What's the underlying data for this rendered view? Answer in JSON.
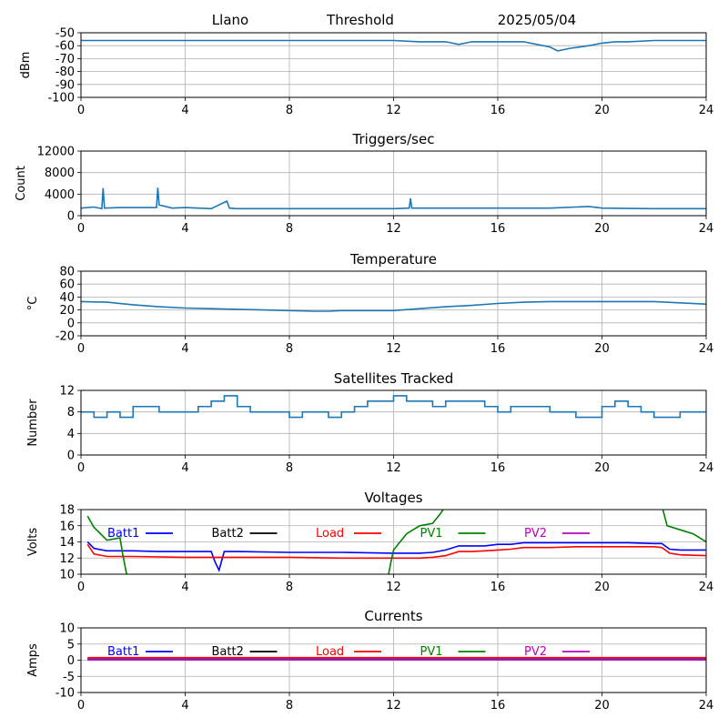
{
  "chart_data": [
    {
      "type": "line",
      "header": {
        "site": "Llano",
        "mode": "Threshold",
        "date": "2025/05/04"
      },
      "title": "",
      "ylabel": "dBm",
      "xlim": [
        0,
        24
      ],
      "ylim": [
        -100,
        -50
      ],
      "xticks": [
        0,
        4,
        8,
        12,
        16,
        20,
        24
      ],
      "yticks": [
        -100,
        -90,
        -80,
        -70,
        -60,
        -50
      ],
      "grid": true,
      "series": [
        {
          "color": "#1f77b4",
          "x": [
            0,
            1,
            2,
            3,
            4,
            5,
            6,
            7,
            8,
            9,
            10,
            11,
            12,
            13,
            14,
            14.5,
            15,
            16,
            17,
            17.5,
            18,
            18.3,
            18.8,
            19.5,
            20,
            20.5,
            21,
            22,
            23,
            24
          ],
          "y": [
            -56,
            -56,
            -56,
            -56,
            -56,
            -56,
            -56,
            -56,
            -56,
            -56,
            -56,
            -56,
            -56,
            -57,
            -57,
            -59,
            -57,
            -57,
            -57,
            -59,
            -61,
            -64,
            -62,
            -60,
            -58,
            -57,
            -57,
            -56,
            -56,
            -56
          ]
        }
      ]
    },
    {
      "type": "line",
      "title": "Triggers/sec",
      "ylabel": "Count",
      "xlim": [
        0,
        24
      ],
      "ylim": [
        0,
        12000
      ],
      "xticks": [
        0,
        4,
        8,
        12,
        16,
        20,
        24
      ],
      "yticks": [
        0,
        4000,
        8000,
        12000
      ],
      "grid": true,
      "series": [
        {
          "color": "#1f77b4",
          "x": [
            0,
            0.5,
            0.8,
            0.85,
            0.9,
            1.5,
            2.9,
            2.95,
            3.0,
            3.5,
            4,
            5,
            5.6,
            5.7,
            6,
            8,
            10,
            12,
            12.6,
            12.65,
            12.7,
            14,
            16,
            18,
            19.5,
            20,
            22,
            24
          ],
          "y": [
            1400,
            1600,
            1300,
            5100,
            1400,
            1500,
            1500,
            5200,
            2000,
            1400,
            1500,
            1300,
            2700,
            1400,
            1300,
            1300,
            1300,
            1300,
            1400,
            3200,
            1400,
            1400,
            1400,
            1400,
            1700,
            1400,
            1300,
            1300
          ]
        }
      ]
    },
    {
      "type": "line",
      "title": "Temperature",
      "ylabel": "°C",
      "xlim": [
        0,
        24
      ],
      "ylim": [
        -20,
        80
      ],
      "xticks": [
        0,
        4,
        8,
        12,
        16,
        20,
        24
      ],
      "yticks": [
        -20,
        0,
        20,
        40,
        60,
        80
      ],
      "grid": true,
      "series": [
        {
          "color": "#1f77b4",
          "x": [
            0,
            1,
            2,
            3,
            4,
            5,
            6,
            7,
            8,
            9,
            9.5,
            10,
            11,
            12,
            13,
            14,
            15,
            16,
            17,
            18,
            19,
            20,
            21,
            22,
            23,
            24
          ],
          "y": [
            33,
            32,
            28,
            25,
            23,
            22,
            21,
            20,
            19,
            18,
            18,
            19,
            19,
            19,
            22,
            25,
            27,
            30,
            32,
            33,
            33,
            33,
            33,
            33,
            31,
            29
          ]
        }
      ]
    },
    {
      "type": "line",
      "title": "Satellites Tracked",
      "ylabel": "Number",
      "xlim": [
        0,
        24
      ],
      "ylim": [
        0,
        12
      ],
      "xticks": [
        0,
        4,
        8,
        12,
        16,
        20,
        24
      ],
      "yticks": [
        0,
        4,
        8,
        12
      ],
      "grid": true,
      "series": [
        {
          "color": "#1f77b4",
          "x": [
            0,
            0.5,
            1,
            1.5,
            2,
            2.5,
            3,
            3.5,
            4,
            4.5,
            5,
            5.5,
            6,
            6.5,
            7,
            7.5,
            8,
            8.5,
            9,
            9.5,
            10,
            10.5,
            11,
            11.5,
            12,
            12.5,
            13,
            13.5,
            14,
            14.5,
            15,
            15.5,
            16,
            16.5,
            17,
            17.5,
            18,
            18.5,
            19,
            19.5,
            20,
            20.5,
            21,
            21.5,
            22,
            22.5,
            23,
            23.5,
            24
          ],
          "y": [
            8,
            7,
            8,
            7,
            9,
            9,
            8,
            8,
            8,
            9,
            10,
            11,
            9,
            8,
            8,
            8,
            7,
            8,
            8,
            7,
            8,
            9,
            10,
            10,
            11,
            10,
            10,
            9,
            10,
            10,
            10,
            9,
            8,
            9,
            9,
            9,
            8,
            8,
            7,
            7,
            9,
            10,
            9,
            8,
            7,
            7,
            8,
            8,
            8
          ]
        }
      ]
    },
    {
      "type": "line",
      "title": "Voltages",
      "ylabel": "Volts",
      "xlim": [
        0,
        24
      ],
      "ylim": [
        10,
        18
      ],
      "xticks": [
        0,
        4,
        8,
        12,
        16,
        20,
        24
      ],
      "yticks": [
        10,
        12,
        14,
        16,
        18
      ],
      "grid": true,
      "legend_position": "top",
      "series": [
        {
          "name": "Batt1",
          "color": "#0000ff",
          "x": [
            0.25,
            0.5,
            1,
            2,
            3,
            4,
            5,
            5.15,
            5.3,
            5.5,
            6,
            8,
            10,
            12,
            13,
            13.5,
            14,
            14.5,
            15,
            15.5,
            16,
            16.5,
            17,
            18,
            19,
            20,
            21,
            22,
            22.3,
            22.6,
            23,
            24
          ],
          "y": [
            14,
            13.2,
            12.9,
            12.9,
            12.8,
            12.8,
            12.8,
            11.5,
            10.5,
            12.8,
            12.8,
            12.7,
            12.7,
            12.6,
            12.6,
            12.7,
            13,
            13.5,
            13.5,
            13.5,
            13.7,
            13.7,
            13.9,
            13.9,
            13.9,
            13.9,
            13.9,
            13.8,
            13.8,
            13.1,
            13,
            13
          ]
        },
        {
          "name": "Batt2",
          "color": "#000000",
          "x": [],
          "y": []
        },
        {
          "name": "Load",
          "color": "#ff0000",
          "x": [
            0.25,
            0.5,
            1,
            2,
            4,
            6,
            8,
            10,
            12,
            13,
            13.5,
            14,
            14.5,
            15,
            15.5,
            16,
            16.5,
            17,
            18,
            19,
            20,
            21,
            22,
            22.3,
            22.6,
            23,
            24
          ],
          "y": [
            13.7,
            12.5,
            12.2,
            12.2,
            12.1,
            12.1,
            12.1,
            12,
            12,
            12,
            12.1,
            12.3,
            12.8,
            12.8,
            12.9,
            13,
            13.1,
            13.3,
            13.3,
            13.4,
            13.4,
            13.4,
            13.4,
            13.3,
            12.6,
            12.4,
            12.3
          ]
        },
        {
          "name": "PV1",
          "color": "#008000",
          "x": [
            0.25,
            0.5,
            1,
            1.5,
            1.6,
            1.75,
            2.0,
            11.75,
            11.9,
            12,
            12.5,
            13,
            13.5,
            13.8,
            14,
            22.3,
            22.5,
            23,
            23.5,
            24
          ],
          "y": [
            17.2,
            15.8,
            14.2,
            14.5,
            12.5,
            10,
            9,
            9,
            11.5,
            13,
            15,
            16,
            16.3,
            17.5,
            18.5,
            18.5,
            16,
            15.5,
            15,
            14
          ]
        },
        {
          "name": "PV2",
          "color": "#bf00bf",
          "x": [],
          "y": []
        }
      ]
    },
    {
      "type": "line",
      "title": "Currents",
      "ylabel": "Amps",
      "xlim": [
        0,
        24
      ],
      "ylim": [
        -10,
        10
      ],
      "xticks": [
        0,
        4,
        8,
        12,
        16,
        20,
        24
      ],
      "yticks": [
        -10,
        -5,
        0,
        5,
        10
      ],
      "grid": true,
      "legend_position": "top",
      "series": [
        {
          "name": "Batt1",
          "color": "#0000ff",
          "x": [
            0.25,
            24
          ],
          "y": [
            0.3,
            0.3
          ]
        },
        {
          "name": "Batt2",
          "color": "#000000",
          "x": [],
          "y": []
        },
        {
          "name": "Load",
          "color": "#ff0000",
          "x": [
            0.25,
            24
          ],
          "y": [
            0.8,
            0.8
          ]
        },
        {
          "name": "PV1",
          "color": "#008000",
          "x": [
            0.25,
            24
          ],
          "y": [
            0.2,
            0.2
          ]
        },
        {
          "name": "PV2",
          "color": "#bf00bf",
          "x": [
            0.25,
            24
          ],
          "y": [
            0.1,
            0.1
          ]
        }
      ]
    }
  ]
}
